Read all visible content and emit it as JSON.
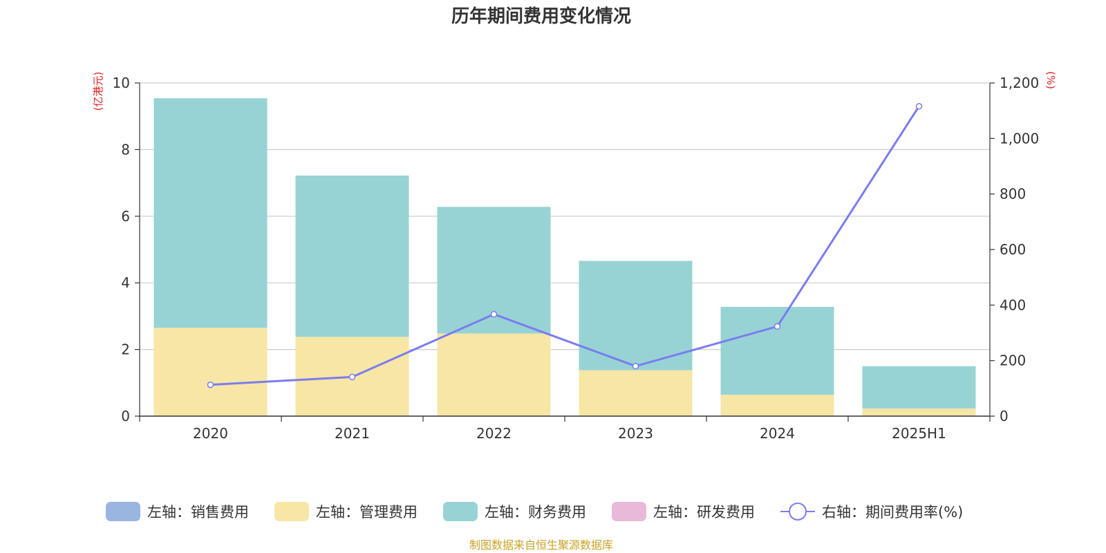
{
  "chart_data": {
    "type": "bar",
    "title": "历年期间费用变化情况",
    "categories": [
      "2020",
      "2021",
      "2022",
      "2023",
      "2024",
      "2025H1"
    ],
    "left_axis": {
      "unit_label": "(亿港元)",
      "ylim": [
        0,
        10
      ],
      "ticks": [
        0,
        2,
        4,
        6,
        8,
        10
      ]
    },
    "right_axis": {
      "unit_label": "(%)",
      "ylim": [
        0,
        1200
      ],
      "ticks": [
        0,
        200,
        400,
        600,
        800,
        1000,
        1200
      ],
      "tick_labels": [
        "0",
        "200",
        "400",
        "600",
        "800",
        "1,000",
        "1,200"
      ]
    },
    "series": [
      {
        "name": "左轴：销售费用",
        "type": "bar",
        "axis": "left",
        "color": "#9bb5e1",
        "values": [
          0,
          0,
          0,
          0,
          0,
          0
        ]
      },
      {
        "name": "左轴：管理费用",
        "type": "bar",
        "axis": "left",
        "color": "#f7e6a6",
        "values": [
          2.65,
          2.38,
          2.48,
          1.38,
          0.64,
          0.23
        ]
      },
      {
        "name": "左轴：财务费用",
        "type": "bar",
        "axis": "left",
        "color": "#97d3d4",
        "values": [
          6.89,
          4.84,
          3.8,
          3.28,
          2.64,
          1.27
        ]
      },
      {
        "name": "左轴：研发费用",
        "type": "bar",
        "axis": "left",
        "color": "#e8b9d9",
        "values": [
          0,
          0,
          0,
          0,
          0,
          0
        ]
      },
      {
        "name": "右轴：期间费用率(%)",
        "type": "line",
        "axis": "right",
        "color": "#7a7cf0",
        "values": [
          113,
          141,
          367,
          180,
          323,
          1116
        ]
      }
    ],
    "source": "制图数据来自恒生聚源数据库"
  }
}
